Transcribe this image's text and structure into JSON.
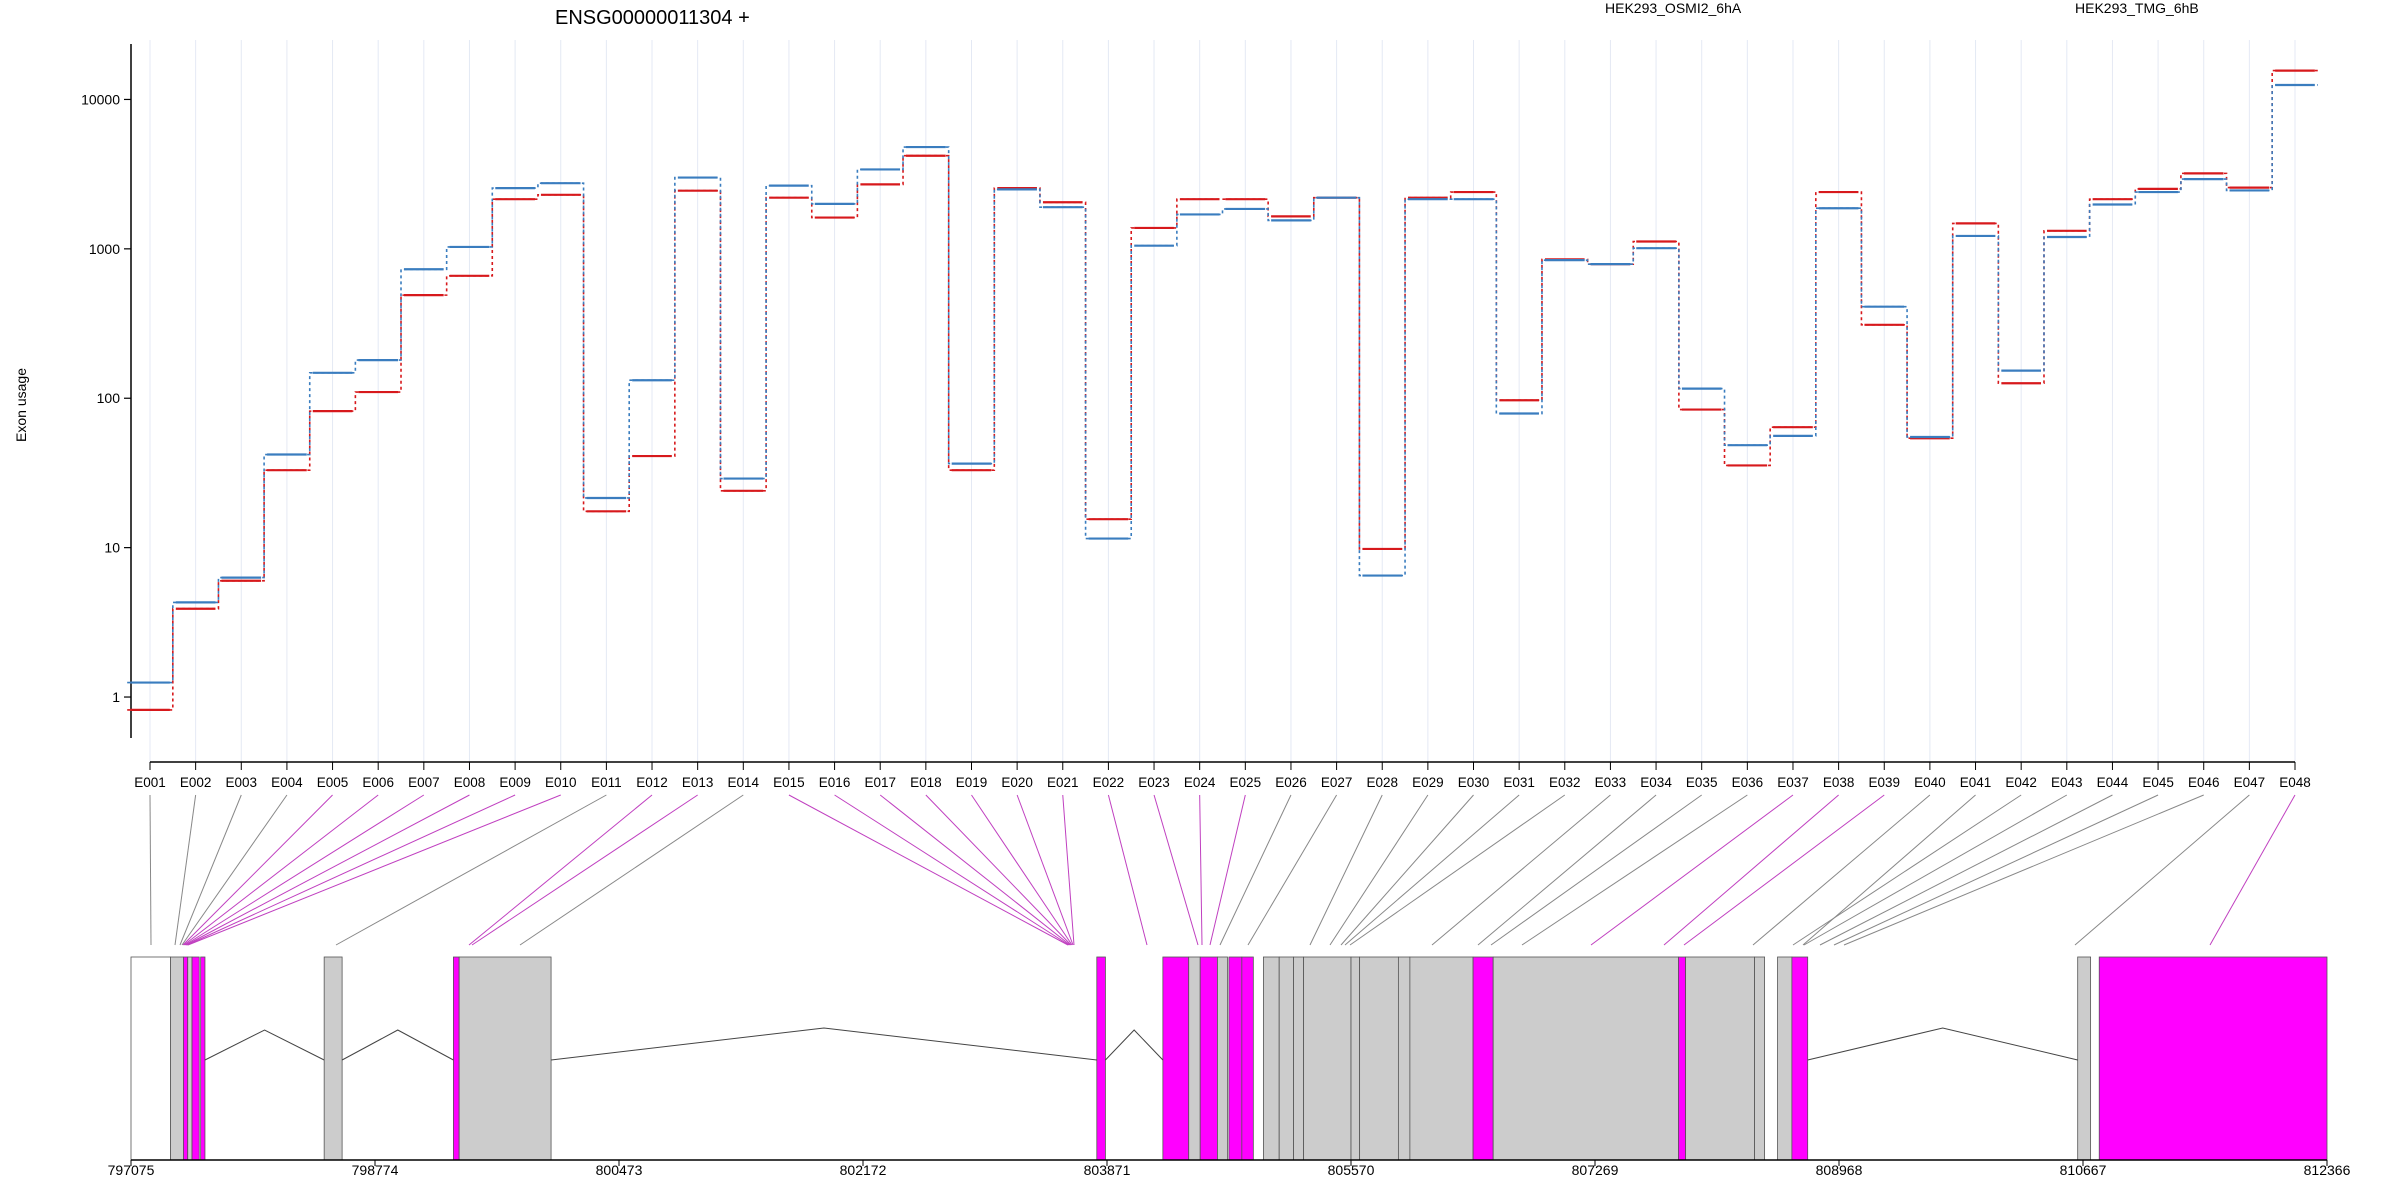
{
  "chart_data": {
    "type": "line",
    "title": "ENSG00000011304 +",
    "ylabel": "Exon usage",
    "yscale": "log",
    "ylim": [
      0.5,
      25000
    ],
    "yticks": [
      "1",
      "10",
      "100",
      "1000",
      "10000"
    ],
    "ytick_values": [
      1,
      10,
      100,
      1000,
      10000
    ],
    "categories": [
      "E001",
      "E002",
      "E003",
      "E004",
      "E005",
      "E006",
      "E007",
      "E008",
      "E009",
      "E010",
      "E011",
      "E012",
      "E013",
      "E014",
      "E015",
      "E016",
      "E017",
      "E018",
      "E019",
      "E020",
      "E021",
      "E022",
      "E023",
      "E024",
      "E025",
      "E026",
      "E027",
      "E028",
      "E029",
      "E030",
      "E031",
      "E032",
      "E033",
      "E034",
      "E035",
      "E036",
      "E037",
      "E038",
      "E039",
      "E040",
      "E041",
      "E042",
      "E043",
      "E044",
      "E045",
      "E046",
      "E047",
      "E048"
    ],
    "series": [
      {
        "name": "HEK293_OSMI2_6hA",
        "color": "#d7191c",
        "values": [
          0.82,
          3.9,
          6.0,
          33,
          82,
          110,
          490,
          660,
          2150,
          2300,
          17.5,
          41,
          2450,
          24,
          2200,
          1620,
          2700,
          4200,
          33,
          2550,
          2050,
          15.5,
          1380,
          2150,
          2150,
          1650,
          2200,
          9.8,
          2200,
          2400,
          97,
          850,
          790,
          1120,
          84,
          35.5,
          64,
          2400,
          310,
          54,
          1480,
          126,
          1320,
          2150,
          2520,
          3200,
          2570,
          15600
        ]
      },
      {
        "name": "HEK293_TMG_6hB",
        "color": "#3a7dbf",
        "values": [
          1.25,
          4.3,
          6.3,
          42,
          148,
          180,
          730,
          1030,
          2550,
          2750,
          21.5,
          132,
          3000,
          29,
          2650,
          2000,
          3400,
          4800,
          36.5,
          2500,
          1900,
          11.5,
          1050,
          1700,
          1850,
          1550,
          2200,
          6.5,
          2150,
          2150,
          79,
          840,
          790,
          1010,
          116,
          48.5,
          56,
          1870,
          410,
          55,
          1220,
          153,
          1200,
          1980,
          2400,
          2930,
          2460,
          12500
        ]
      }
    ],
    "gene_axis": {
      "ticks": [
        "797075",
        "798774",
        "800473",
        "802172",
        "803871",
        "805570",
        "807269",
        "808968",
        "810667",
        "812366"
      ],
      "tick_values": [
        797075,
        798774,
        800473,
        802172,
        803871,
        805570,
        807269,
        808968,
        810667,
        812366
      ],
      "range": [
        797075,
        812366
      ]
    },
    "exon_blocks": [
      {
        "start": 797075,
        "end": 797350,
        "fill": "none"
      },
      {
        "start": 797350,
        "end": 797440,
        "fill": "#cccccc"
      },
      {
        "start": 797440,
        "end": 797470,
        "fill": "#ff00ff"
      },
      {
        "start": 797470,
        "end": 797500,
        "fill": "#cccccc"
      },
      {
        "start": 797500,
        "end": 797550,
        "fill": "#ff00ff"
      },
      {
        "start": 797560,
        "end": 797590,
        "fill": "#ff00ff"
      },
      {
        "start": 798420,
        "end": 798545,
        "fill": "#cccccc"
      },
      {
        "start": 799320,
        "end": 799360,
        "fill": "#ff00ff"
      },
      {
        "start": 799360,
        "end": 800000,
        "fill": "#cccccc"
      },
      {
        "start": 803800,
        "end": 803860,
        "fill": "#ff00ff"
      },
      {
        "start": 804260,
        "end": 804440,
        "fill": "#ff00ff"
      },
      {
        "start": 804440,
        "end": 804520,
        "fill": "#cccccc"
      },
      {
        "start": 804520,
        "end": 804640,
        "fill": "#ff00ff"
      },
      {
        "start": 804640,
        "end": 804710,
        "fill": "#cccccc"
      },
      {
        "start": 804720,
        "end": 804810,
        "fill": "#ff00ff"
      },
      {
        "start": 804810,
        "end": 804890,
        "fill": "#ff00ff"
      },
      {
        "start": 804960,
        "end": 805070,
        "fill": "#cccccc"
      },
      {
        "start": 805070,
        "end": 805170,
        "fill": "#cccccc"
      },
      {
        "start": 805170,
        "end": 805240,
        "fill": "#cccccc"
      },
      {
        "start": 805240,
        "end": 805570,
        "fill": "#cccccc"
      },
      {
        "start": 805570,
        "end": 805630,
        "fill": "#cccccc"
      },
      {
        "start": 805630,
        "end": 805900,
        "fill": "#cccccc"
      },
      {
        "start": 805900,
        "end": 805980,
        "fill": "#cccccc"
      },
      {
        "start": 805980,
        "end": 806420,
        "fill": "#cccccc"
      },
      {
        "start": 806420,
        "end": 806560,
        "fill": "#ff00ff"
      },
      {
        "start": 806560,
        "end": 807850,
        "fill": "#cccccc"
      },
      {
        "start": 807850,
        "end": 807900,
        "fill": "#ff00ff"
      },
      {
        "start": 807900,
        "end": 808380,
        "fill": "#cccccc"
      },
      {
        "start": 808380,
        "end": 808450,
        "fill": "#cccccc"
      },
      {
        "start": 808540,
        "end": 808640,
        "fill": "#cccccc"
      },
      {
        "start": 808640,
        "end": 808750,
        "fill": "#ff00ff"
      },
      {
        "start": 810630,
        "end": 810720,
        "fill": "#cccccc"
      },
      {
        "start": 810780,
        "end": 812366,
        "fill": "#ff00ff"
      }
    ]
  }
}
